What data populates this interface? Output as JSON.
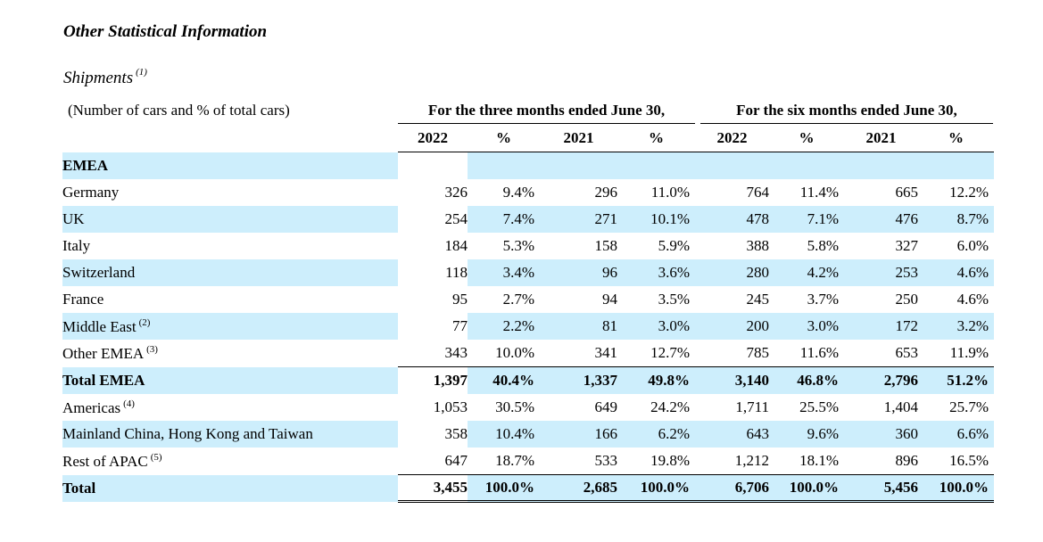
{
  "heading": "Other Statistical Information",
  "subheading": "Shipments",
  "subheading_note": "(1)",
  "units": "(Number of cars and % of total cars)",
  "periods": [
    "For the three months ended June 30,",
    "For the six months ended June 30,"
  ],
  "columns": [
    "2022",
    "%",
    "2021",
    "%",
    "2022",
    "%",
    "2021",
    "%"
  ],
  "colors": {
    "band": "#cdeefc"
  },
  "rows": [
    {
      "label": "EMEA",
      "note": "",
      "values": [
        "",
        "",
        "",
        "",
        "",
        "",
        "",
        ""
      ]
    },
    {
      "label": "Germany",
      "note": "",
      "values": [
        "326",
        "9.4%",
        "296",
        "11.0%",
        "764",
        "11.4%",
        "665",
        "12.2%"
      ]
    },
    {
      "label": "UK",
      "note": "",
      "values": [
        "254",
        "7.4%",
        "271",
        "10.1%",
        "478",
        "7.1%",
        "476",
        "8.7%"
      ]
    },
    {
      "label": "Italy",
      "note": "",
      "values": [
        "184",
        "5.3%",
        "158",
        "5.9%",
        "388",
        "5.8%",
        "327",
        "6.0%"
      ]
    },
    {
      "label": "Switzerland",
      "note": "",
      "values": [
        "118",
        "3.4%",
        "96",
        "3.6%",
        "280",
        "4.2%",
        "253",
        "4.6%"
      ]
    },
    {
      "label": "France",
      "note": "",
      "values": [
        "95",
        "2.7%",
        "94",
        "3.5%",
        "245",
        "3.7%",
        "250",
        "4.6%"
      ]
    },
    {
      "label": "Middle East",
      "note": "(2)",
      "values": [
        "77",
        "2.2%",
        "81",
        "3.0%",
        "200",
        "3.0%",
        "172",
        "3.2%"
      ]
    },
    {
      "label": "Other EMEA",
      "note": "(3)",
      "values": [
        "343",
        "10.0%",
        "341",
        "12.7%",
        "785",
        "11.6%",
        "653",
        "11.9%"
      ]
    },
    {
      "label": "Total EMEA",
      "note": "",
      "values": [
        "1,397",
        "40.4%",
        "1,337",
        "49.8%",
        "3,140",
        "46.8%",
        "2,796",
        "51.2%"
      ]
    },
    {
      "label": "Americas",
      "note": "(4)",
      "values": [
        "1,053",
        "30.5%",
        "649",
        "24.2%",
        "1,711",
        "25.5%",
        "1,404",
        "25.7%"
      ]
    },
    {
      "label": "Mainland China, Hong Kong and Taiwan",
      "note": "",
      "values": [
        "358",
        "10.4%",
        "166",
        "6.2%",
        "643",
        "9.6%",
        "360",
        "6.6%"
      ]
    },
    {
      "label": "Rest of APAC",
      "note": "(5)",
      "values": [
        "647",
        "18.7%",
        "533",
        "19.8%",
        "1,212",
        "18.1%",
        "896",
        "16.5%"
      ]
    },
    {
      "label": "Total",
      "note": "",
      "values": [
        "3,455",
        "100.0%",
        "2,685",
        "100.0%",
        "6,706",
        "100.0%",
        "5,456",
        "100.0%"
      ]
    }
  ]
}
